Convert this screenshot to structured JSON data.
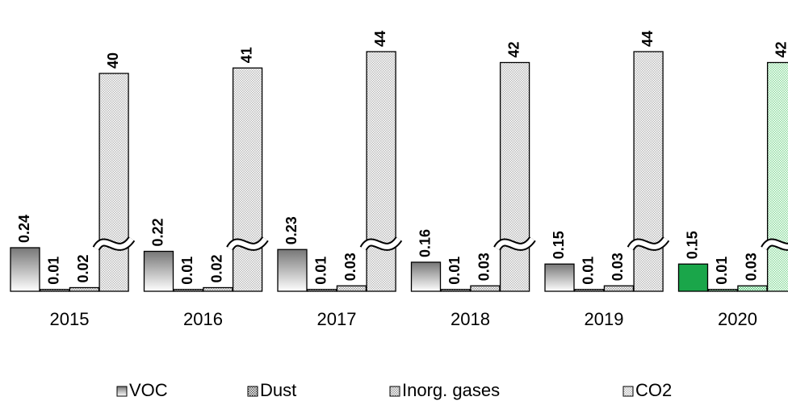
{
  "chart_data": {
    "type": "bar",
    "categories": [
      "2015",
      "2016",
      "2017",
      "2018",
      "2019",
      "2020"
    ],
    "series": [
      {
        "name": "VOC",
        "color": "#777777",
        "point_colors": [
          "#777777",
          "#777777",
          "#777777",
          "#777777",
          "#777777",
          "#1aa64a"
        ],
        "values": [
          0.24,
          0.22,
          0.23,
          0.16,
          0.15,
          0.15
        ]
      },
      {
        "name": "Dust",
        "color": "#555555",
        "point_colors": [
          "#555555",
          "#555555",
          "#555555",
          "#555555",
          "#555555",
          "#0e7a30"
        ],
        "values": [
          0.01,
          0.01,
          0.01,
          0.01,
          0.01,
          0.01
        ]
      },
      {
        "name": "Inorg. gases",
        "color": "#999999",
        "point_colors": [
          "#999999",
          "#999999",
          "#999999",
          "#999999",
          "#999999",
          "#4cc070"
        ],
        "values": [
          0.02,
          0.02,
          0.03,
          0.03,
          0.03,
          0.03
        ]
      },
      {
        "name": "CO2",
        "color": "#bbbbbb",
        "point_colors": [
          "#bbbbbb",
          "#bbbbbb",
          "#bbbbbb",
          "#bbbbbb",
          "#bbbbbb",
          "#8fdca0"
        ],
        "values": [
          40,
          41,
          44,
          42,
          44,
          42
        ],
        "axis_break": true
      }
    ]
  }
}
